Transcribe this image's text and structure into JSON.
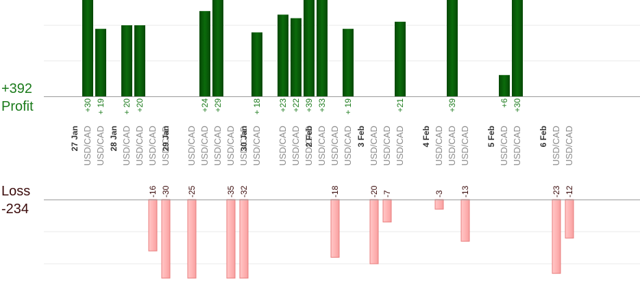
{
  "summary": {
    "profit_total": "+392",
    "profit_label": "Profit",
    "loss_label": "Loss",
    "loss_total": "-234"
  },
  "colors": {
    "profit_bar": "#0b6b0b",
    "profit_bar_dark": "#064806",
    "loss_bar": "#ffb4b4",
    "loss_bar_edge": "#e87c7c",
    "profit_text": "#1a7a1a",
    "loss_text": "#3a0a0a",
    "axis": "#999999",
    "grid": "#e8e8e8",
    "instrument_text": "#8a8a8a"
  },
  "chart_data": {
    "type": "bar",
    "profit_ylim": [
      0,
      30
    ],
    "loss_ylim": [
      -25,
      0
    ],
    "profit_grid": [
      10,
      20
    ],
    "loss_grid": [
      -10,
      -20
    ],
    "dates": [
      {
        "label": "27 Jan",
        "slot": 0
      },
      {
        "label": "28 Jan",
        "slot": 3
      },
      {
        "label": "29 Jan",
        "slot": 7
      },
      {
        "label": "30 Jan",
        "slot": 13
      },
      {
        "label": "2 Feb",
        "slot": 18
      },
      {
        "label": "3 Feb",
        "slot": 22
      },
      {
        "label": "4 Feb",
        "slot": 27
      },
      {
        "label": "5 Feb",
        "slot": 32
      },
      {
        "label": "6 Feb",
        "slot": 36
      }
    ],
    "trades": [
      {
        "slot": 1,
        "instrument": "USD/CAD",
        "value": 30,
        "label": "+30"
      },
      {
        "slot": 2,
        "instrument": "USD/CAD",
        "value": 19,
        "label": "+ 19"
      },
      {
        "slot": 4,
        "instrument": "USD/CAD",
        "value": 20,
        "label": "+ 20"
      },
      {
        "slot": 5,
        "instrument": "USD/CAD",
        "value": 20,
        "label": "+20"
      },
      {
        "slot": 6,
        "instrument": "USD/CAD",
        "value": -16,
        "label": "-16"
      },
      {
        "slot": 7,
        "instrument": "USD/CAD",
        "value": -30,
        "label": "-30"
      },
      {
        "slot": 9,
        "instrument": "USD/CAD",
        "value": -25,
        "label": "-25"
      },
      {
        "slot": 10,
        "instrument": "USD/CAD",
        "value": 24,
        "label": "+24"
      },
      {
        "slot": 11,
        "instrument": "USD/CAD",
        "value": 29,
        "label": "+29"
      },
      {
        "slot": 12,
        "instrument": "USD/CAD",
        "value": -35,
        "label": "-35"
      },
      {
        "slot": 13,
        "instrument": "USD/CAD",
        "value": -32,
        "label": "-32"
      },
      {
        "slot": 14,
        "instrument": "USD/CAD",
        "value": 18,
        "label": "+ 18"
      },
      {
        "slot": 16,
        "instrument": "USD/CAD",
        "value": 23,
        "label": "+23"
      },
      {
        "slot": 17,
        "instrument": "USD/CAD",
        "value": 22,
        "label": "+22"
      },
      {
        "slot": 18,
        "instrument": "USD/CAD",
        "value": 39,
        "label": "+39"
      },
      {
        "slot": 19,
        "instrument": "USD/CAD",
        "value": 33,
        "label": "+33"
      },
      {
        "slot": 20,
        "instrument": "USD/CAD",
        "value": -18,
        "label": "-18"
      },
      {
        "slot": 21,
        "instrument": "USD/CAD",
        "value": 19,
        "label": "+ 19"
      },
      {
        "slot": 23,
        "instrument": "USD/CAD",
        "value": -20,
        "label": "-20"
      },
      {
        "slot": 24,
        "instrument": "USD/CAD",
        "value": -7,
        "label": "-7"
      },
      {
        "slot": 25,
        "instrument": "USD/CAD",
        "value": 21,
        "label": "+21"
      },
      {
        "slot": 28,
        "instrument": "USD/CAD",
        "value": -3,
        "label": "-3"
      },
      {
        "slot": 29,
        "instrument": "USD/CAD",
        "value": 39,
        "label": "+39"
      },
      {
        "slot": 30,
        "instrument": "USD/CAD",
        "value": -13,
        "label": "-13"
      },
      {
        "slot": 33,
        "instrument": "USD/CAD",
        "value": 6,
        "label": "+6"
      },
      {
        "slot": 34,
        "instrument": "USD/CAD",
        "value": 30,
        "label": "+30"
      },
      {
        "slot": 37,
        "instrument": "USD/CAD",
        "value": -23,
        "label": "-23"
      },
      {
        "slot": 38,
        "instrument": "USD/CAD",
        "value": -12,
        "label": "-12"
      }
    ]
  }
}
